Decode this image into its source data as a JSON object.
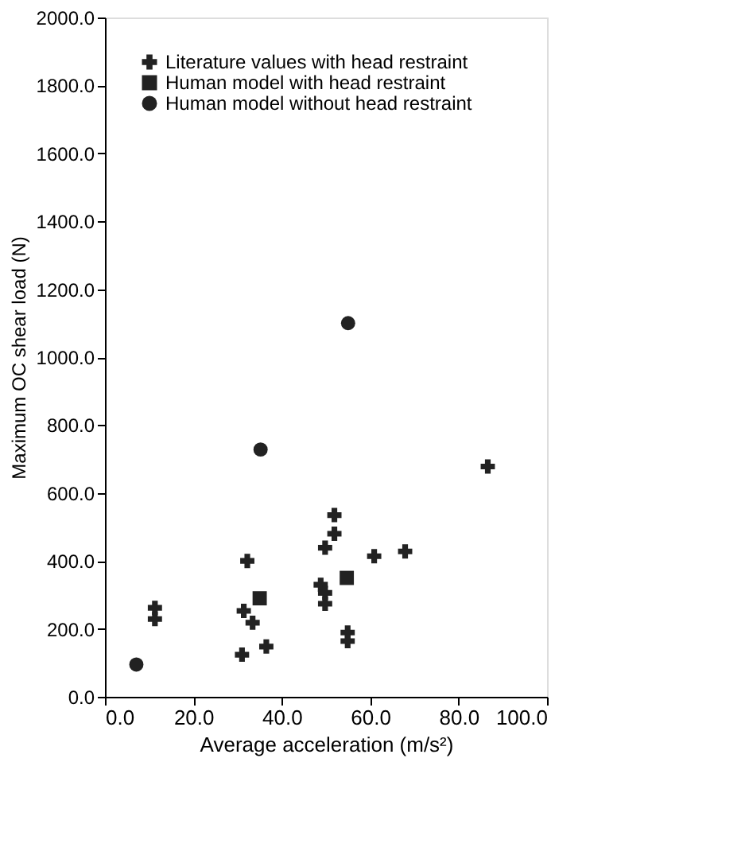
{
  "chart_data": {
    "type": "scatter",
    "xlabel": "Average acceleration (m/s²)",
    "ylabel": "Maximum OC shear load (N)",
    "xlim": [
      0,
      100
    ],
    "ylim": [
      0,
      2000
    ],
    "xticks": [
      {
        "value": 0,
        "label": "0.0"
      },
      {
        "value": 20,
        "label": "20.0"
      },
      {
        "value": 40,
        "label": "40.0"
      },
      {
        "value": 60,
        "label": "60.0"
      },
      {
        "value": 80,
        "label": "80.0"
      },
      {
        "value": 100,
        "label": "100.0"
      }
    ],
    "yticks": [
      {
        "value": 0,
        "label": "0.0"
      },
      {
        "value": 200,
        "label": "200.0"
      },
      {
        "value": 400,
        "label": "400.0"
      },
      {
        "value": 600,
        "label": "600.0"
      },
      {
        "value": 800,
        "label": "800.0"
      },
      {
        "value": 1000,
        "label": "1000.0"
      },
      {
        "value": 1200,
        "label": "1200.0"
      },
      {
        "value": 1400,
        "label": "1400.0"
      },
      {
        "value": 1600,
        "label": "1600.0"
      },
      {
        "value": 1800,
        "label": "1800.0"
      },
      {
        "value": 2000,
        "label": "2000.0"
      }
    ],
    "grid": false,
    "legend": "top left",
    "series": [
      {
        "name": "Literature values with head restraint",
        "color": "#222222",
        "marker": "cross",
        "x": [
          11.3,
          11.3,
          32.2,
          31.0,
          31.4,
          33.4,
          36.5,
          48.8,
          49.8,
          49.8,
          49.8,
          51.9,
          51.9,
          54.9,
          54.9,
          60.9,
          67.9,
          86.6
        ],
        "values": [
          262,
          229,
          400,
          124,
          253,
          218,
          148,
          330,
          306,
          274,
          439,
          535,
          480,
          189,
          164,
          414,
          428,
          678
        ]
      },
      {
        "name": "Human model with head restraint",
        "color": "#222222",
        "marker": "square",
        "x": [
          35.0,
          54.7
        ],
        "values": [
          290,
          350
        ]
      },
      {
        "name": "Human model without head restraint",
        "color": "#222222",
        "marker": "circle",
        "x": [
          7.1,
          35.2,
          55.0
        ],
        "values": [
          95,
          728,
          1100
        ]
      }
    ]
  }
}
